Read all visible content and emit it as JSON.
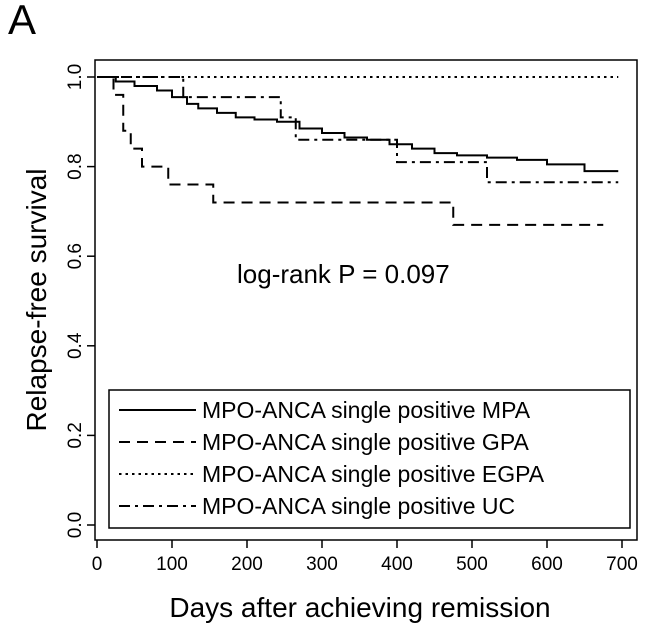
{
  "panel_label": "A",
  "chart_data": {
    "type": "line",
    "title": "",
    "xlabel": "Days after achieving remission",
    "ylabel": "Relapse-free survival",
    "xlim": [
      0,
      700
    ],
    "ylim": [
      0,
      1
    ],
    "x_ticks": [
      "0",
      "100",
      "200",
      "300",
      "400",
      "500",
      "600",
      "700"
    ],
    "y_ticks": [
      "0.0",
      "0.2",
      "0.4",
      "0.6",
      "0.8",
      "1.0"
    ],
    "annotation": "log-rank P = 0.097",
    "grid": false,
    "legend_position": "bottom-right",
    "series": [
      {
        "name": "MPO-ANCA single positive MPA",
        "line_style": "solid",
        "steps": [
          [
            0,
            1.0
          ],
          [
            25,
            0.99
          ],
          [
            50,
            0.98
          ],
          [
            80,
            0.97
          ],
          [
            100,
            0.955
          ],
          [
            120,
            0.94
          ],
          [
            135,
            0.93
          ],
          [
            160,
            0.92
          ],
          [
            185,
            0.91
          ],
          [
            210,
            0.905
          ],
          [
            240,
            0.9
          ],
          [
            270,
            0.885
          ],
          [
            300,
            0.875
          ],
          [
            330,
            0.865
          ],
          [
            360,
            0.86
          ],
          [
            390,
            0.85
          ],
          [
            420,
            0.84
          ],
          [
            450,
            0.83
          ],
          [
            480,
            0.825
          ],
          [
            520,
            0.82
          ],
          [
            560,
            0.815
          ],
          [
            600,
            0.805
          ],
          [
            650,
            0.79
          ],
          [
            695,
            0.79
          ]
        ]
      },
      {
        "name": "MPO-ANCA single positive GPA",
        "line_style": "dashed",
        "steps": [
          [
            0,
            1.0
          ],
          [
            22,
            0.96
          ],
          [
            35,
            0.88
          ],
          [
            45,
            0.84
          ],
          [
            60,
            0.8
          ],
          [
            95,
            0.76
          ],
          [
            155,
            0.72
          ],
          [
            475,
            0.67
          ],
          [
            675,
            0.67
          ]
        ]
      },
      {
        "name": "MPO-ANCA single positive EGPA",
        "line_style": "dotted",
        "steps": [
          [
            0,
            1.0
          ],
          [
            695,
            1.0
          ]
        ]
      },
      {
        "name": "MPO-ANCA single positive UC",
        "line_style": "dashdot",
        "steps": [
          [
            0,
            1.0
          ],
          [
            115,
            0.955
          ],
          [
            245,
            0.91
          ],
          [
            265,
            0.86
          ],
          [
            400,
            0.81
          ],
          [
            520,
            0.765
          ],
          [
            695,
            0.765
          ]
        ]
      }
    ]
  }
}
